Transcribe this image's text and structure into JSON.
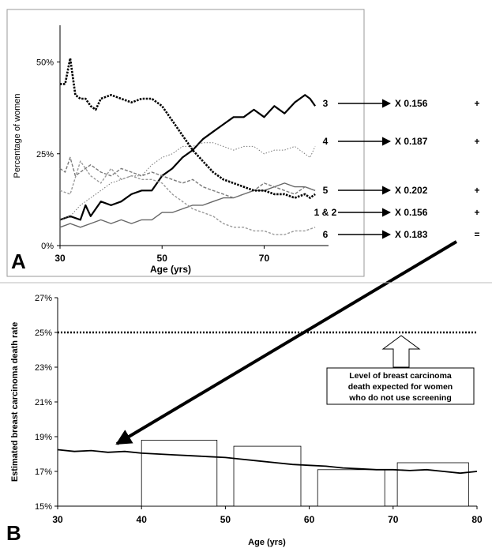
{
  "chart_data": [
    {
      "type": "line",
      "panel_label": "A",
      "xlabel": "Age (yrs)",
      "ylabel": "Percentage of women",
      "xlim": [
        30,
        82
      ],
      "ylim": [
        0,
        60
      ],
      "xticks": [
        30,
        50,
        70
      ],
      "xtick_labels": [
        "30",
        "50",
        "70"
      ],
      "yticks": [
        0,
        25,
        50
      ],
      "ytick_labels": [
        "0%",
        "25%",
        "50%"
      ],
      "grid": false,
      "series": [
        {
          "name": "3",
          "style": "solid-thick",
          "color": "#000000",
          "x": [
            30,
            32,
            34,
            35,
            36,
            38,
            40,
            42,
            44,
            46,
            48,
            50,
            52,
            54,
            56,
            58,
            60,
            62,
            64,
            66,
            68,
            70,
            72,
            74,
            76,
            78,
            79,
            80
          ],
          "y": [
            7,
            8,
            7,
            11,
            8,
            12,
            11,
            12,
            14,
            15,
            15,
            19,
            21,
            24,
            26,
            29,
            31,
            33,
            35,
            35,
            37,
            35,
            38,
            36,
            39,
            41,
            40,
            38
          ]
        },
        {
          "name": "4",
          "style": "dotted-thin",
          "color": "#777777",
          "x": [
            30,
            32,
            34,
            36,
            38,
            40,
            42,
            44,
            46,
            48,
            50,
            52,
            54,
            56,
            58,
            60,
            62,
            64,
            66,
            68,
            70,
            72,
            74,
            76,
            78,
            79,
            80
          ],
          "y": [
            7,
            8,
            11,
            13,
            15,
            17,
            18,
            19,
            19,
            22,
            24,
            25,
            27,
            27,
            28,
            28,
            27,
            26,
            27,
            27,
            25,
            26,
            26,
            27,
            25,
            24,
            27
          ]
        },
        {
          "name": "5",
          "style": "solid-gray",
          "color": "#666666",
          "x": [
            30,
            32,
            34,
            36,
            38,
            40,
            42,
            44,
            46,
            48,
            50,
            52,
            54,
            56,
            58,
            60,
            62,
            64,
            66,
            68,
            70,
            72,
            74,
            76,
            78,
            80
          ],
          "y": [
            5,
            6,
            5,
            6,
            7,
            6,
            7,
            6,
            7,
            7,
            9,
            9,
            10,
            11,
            11,
            12,
            13,
            13,
            14,
            15,
            15,
            16,
            17,
            16,
            16,
            15
          ]
        },
        {
          "name": "1 & 2",
          "style": "dashed-gray",
          "color": "#7a7a7a",
          "x": [
            30,
            31,
            32,
            33,
            34,
            36,
            38,
            40,
            42,
            44,
            46,
            48,
            50,
            52,
            54,
            56,
            58,
            60,
            62,
            64,
            66,
            68,
            70,
            72,
            74,
            76,
            78,
            80
          ],
          "y": [
            21,
            20,
            24,
            19,
            20,
            22,
            20,
            19,
            21,
            20,
            19,
            20,
            19,
            18,
            17,
            18,
            16,
            15,
            14,
            13,
            14,
            15,
            17,
            16,
            15,
            14,
            16,
            15
          ]
        },
        {
          "name": "6",
          "style": "dashed-light",
          "color": "#999999",
          "x": [
            30,
            32,
            34,
            36,
            38,
            40,
            42,
            44,
            46,
            48,
            50,
            52,
            54,
            56,
            58,
            60,
            62,
            64,
            66,
            68,
            70,
            72,
            74,
            76,
            78,
            80
          ],
          "y": [
            15,
            14,
            23,
            19,
            17,
            21,
            18,
            19,
            18,
            18,
            17,
            14,
            12,
            10,
            9,
            8,
            6,
            5,
            5,
            4,
            4,
            3,
            3,
            4,
            4,
            5
          ]
        },
        {
          "name": "",
          "style": "dotted-heavy",
          "color": "#000000",
          "x": [
            30,
            31,
            32,
            33,
            34,
            35,
            36,
            37,
            38,
            40,
            42,
            44,
            46,
            48,
            50,
            52,
            54,
            56,
            58,
            60,
            62,
            64,
            66,
            68,
            70,
            72,
            74,
            76,
            78,
            79,
            80
          ],
          "y": [
            44,
            44,
            51,
            41,
            40,
            40,
            38,
            37,
            40,
            41,
            40,
            39,
            40,
            40,
            38,
            34,
            30,
            26,
            23,
            20,
            18,
            17,
            16,
            15,
            15,
            14,
            14,
            13,
            14,
            13,
            14
          ]
        }
      ],
      "multipliers": [
        {
          "group": "3",
          "factor": "X  0.156",
          "op": "+"
        },
        {
          "group": "4",
          "factor": "X  0.187",
          "op": "+"
        },
        {
          "group": "5",
          "factor": "X  0.202",
          "op": "+"
        },
        {
          "group": "1 & 2",
          "factor": "X 0.156",
          "op": "+"
        },
        {
          "group": "6",
          "factor": "X  0.183",
          "op": "="
        }
      ]
    },
    {
      "type": "line",
      "panel_label": "B",
      "xlabel": "Age (yrs)",
      "ylabel": "Estimated breast carcinoma death rate",
      "xlim": [
        30,
        80
      ],
      "ylim": [
        15,
        27
      ],
      "xticks": [
        30,
        40,
        50,
        60,
        70,
        80
      ],
      "xtick_labels": [
        "30",
        "40",
        "50",
        "60",
        "70",
        "80"
      ],
      "yticks": [
        15,
        17,
        19,
        21,
        23,
        25,
        27
      ],
      "ytick_labels": [
        "15%",
        "17%",
        "19%",
        "21%",
        "23%",
        "25%",
        "27%"
      ],
      "grid": false,
      "series": [
        {
          "name": "",
          "style": "solid",
          "color": "#000000",
          "x": [
            30,
            32,
            34,
            36,
            38,
            40,
            42,
            44,
            46,
            48,
            50,
            52,
            54,
            56,
            58,
            60,
            62,
            64,
            66,
            68,
            70,
            72,
            74,
            76,
            78,
            80
          ],
          "y": [
            18.25,
            18.15,
            18.2,
            18.1,
            18.15,
            18.05,
            18.0,
            17.95,
            17.9,
            17.85,
            17.8,
            17.7,
            17.6,
            17.5,
            17.4,
            17.35,
            17.3,
            17.2,
            17.15,
            17.1,
            17.1,
            17.05,
            17.1,
            17.0,
            16.9,
            17.0
          ]
        }
      ],
      "reference_line": {
        "value": 25,
        "style": "dotted"
      },
      "bars": [
        {
          "x_start": 40,
          "x_end": 49,
          "top": 18.8
        },
        {
          "x_start": 51,
          "x_end": 59,
          "top": 18.45
        },
        {
          "x_start": 61,
          "x_end": 69,
          "top": 17.1
        },
        {
          "x_start": 70.5,
          "x_end": 79,
          "top": 17.5
        }
      ],
      "annotation": {
        "lines": [
          "Level of breast carcinoma",
          "death expected for women",
          "who do not use screening"
        ]
      }
    }
  ]
}
